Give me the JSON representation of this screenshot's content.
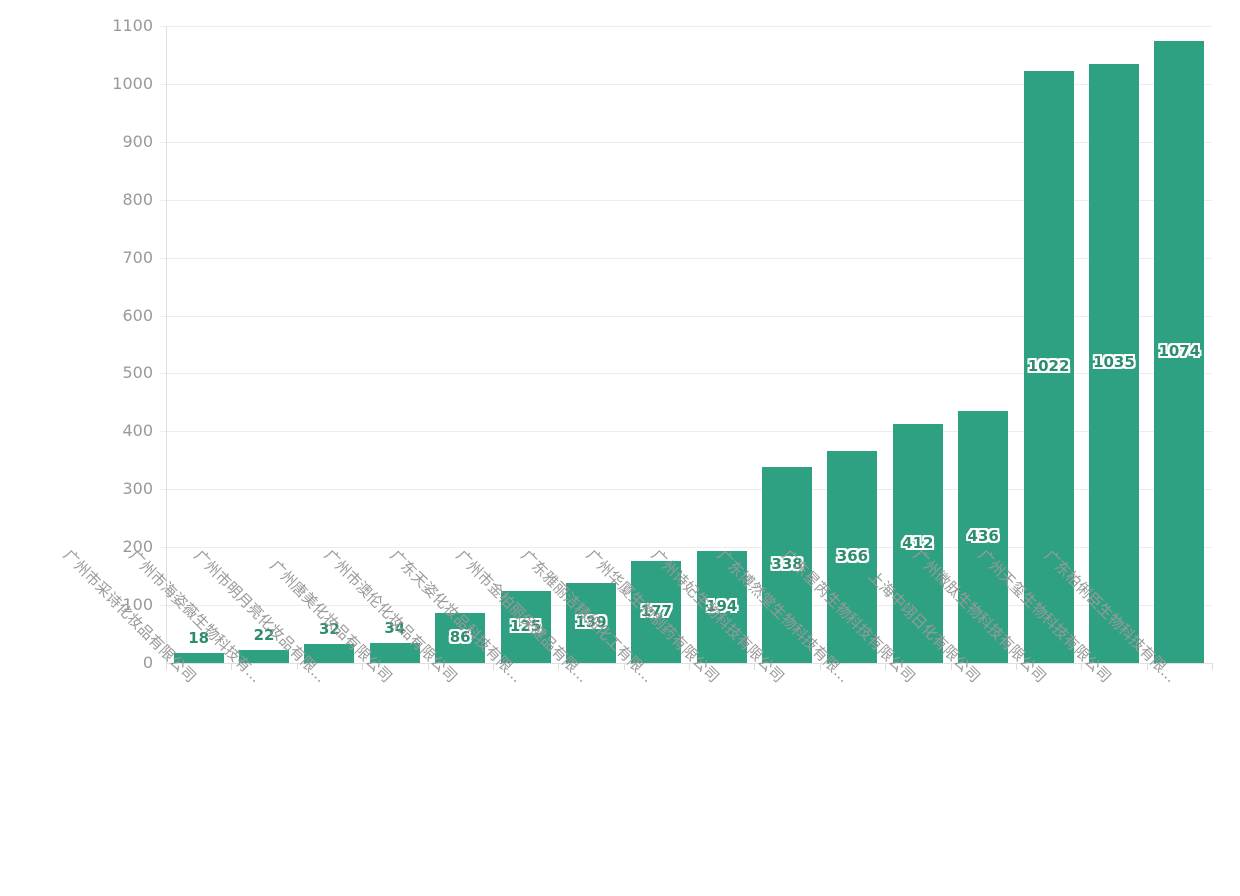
{
  "chart_data": {
    "type": "bar",
    "title": "",
    "xlabel": "",
    "ylabel": "",
    "categories": [
      "广州市采诗化妆品有限公司",
      "广州市海姿薇生物科技有...",
      "广州市明月亮化妆品有限...",
      "广州唐美化妆品有限公司",
      "广州市澳伦化妆品有限公司",
      "广东天姿化妆品科技有限...",
      "广州市金柏丽保健品有限...",
      "广东雅丽洁精细化工有限...",
      "广州华厦生物制药有限公司",
      "广州诗妃生物科技有限公司",
      "广东博然堂生物科技有限...",
      "广东星芮生物科技有限公司",
      "上海中翊日化有限公司",
      "广州微肽生物科技有限公司",
      "广州天玺生物科技有限公司",
      "广东柏俐臣生物科技有限..."
    ],
    "values": [
      18,
      22,
      32,
      34,
      86,
      125,
      139,
      177,
      194,
      338,
      366,
      412,
      436,
      1022,
      1035,
      1074
    ],
    "ylim": [
      0,
      1100
    ],
    "yticks": [
      0,
      100,
      200,
      300,
      400,
      500,
      600,
      700,
      800,
      900,
      1000,
      1100
    ],
    "grid": "horizontal-only",
    "legend": "none",
    "x_label_rotation_deg": 45,
    "colors": {
      "bar": "#2fa183",
      "value_label": "#2c8c6e",
      "value_label_outline": "#ffffff",
      "axis_text": "#999999",
      "gridline": "#ececec",
      "axis_line": "#e0e0e0"
    }
  }
}
